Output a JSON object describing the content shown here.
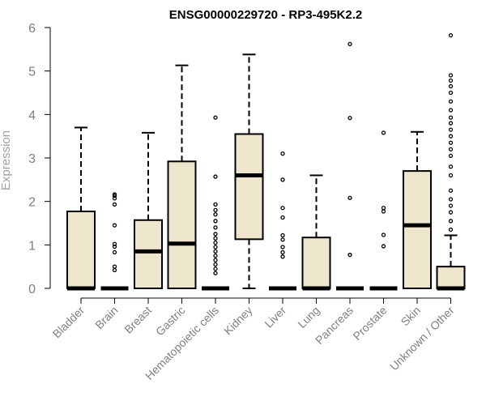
{
  "chart_data": {
    "type": "box",
    "title": "ENSG00000229720 - RP3-495K2.2",
    "xlabel": "",
    "ylabel": "Expression",
    "ylim": [
      0,
      6
    ],
    "yticks": [
      "0",
      "1",
      "2",
      "3",
      "4",
      "5",
      "6"
    ],
    "grid": false,
    "box_fill": "#ede6cc",
    "box_stroke": "#000000",
    "categories": [
      {
        "label": "Bladder",
        "whisker_low": 0,
        "q1": 0,
        "median": 0,
        "q3": 1.77,
        "whisker_high": 3.7,
        "outliers": []
      },
      {
        "label": "Brain",
        "whisker_low": 0,
        "q1": 0,
        "median": 0,
        "q3": 0,
        "whisker_high": 0,
        "outliers": [
          0.42,
          0.5,
          0.83,
          0.96,
          1.02,
          1.45,
          1.93,
          2.07,
          2.13,
          2.16
        ]
      },
      {
        "label": "Breast",
        "whisker_low": 0,
        "q1": 0,
        "median": 0.85,
        "q3": 1.57,
        "whisker_high": 3.58,
        "outliers": []
      },
      {
        "label": "Gastric",
        "whisker_low": 0,
        "q1": 0,
        "median": 1.03,
        "q3": 2.92,
        "whisker_high": 5.13,
        "outliers": []
      },
      {
        "label": "Hematopoietic cells",
        "whisker_low": 0,
        "q1": 0,
        "median": 0,
        "q3": 0,
        "whisker_high": 0,
        "outliers": [
          0.35,
          0.45,
          0.55,
          0.65,
          0.75,
          0.85,
          0.95,
          1.05,
          1.15,
          1.25,
          1.4,
          1.55,
          1.7,
          1.8,
          1.93,
          2.57,
          3.93
        ]
      },
      {
        "label": "Kidney",
        "whisker_low": 0,
        "q1": 1.13,
        "median": 2.6,
        "q3": 3.55,
        "whisker_high": 5.38,
        "outliers": []
      },
      {
        "label": "Liver",
        "whisker_low": 0,
        "q1": 0,
        "median": 0,
        "q3": 0,
        "whisker_high": 0,
        "outliers": [
          0.73,
          0.83,
          0.95,
          1.12,
          1.22,
          1.63,
          1.85,
          2.5,
          3.1
        ]
      },
      {
        "label": "Lung",
        "whisker_low": 0,
        "q1": 0,
        "median": 0,
        "q3": 1.17,
        "whisker_high": 2.6,
        "outliers": []
      },
      {
        "label": "Pancreas",
        "whisker_low": 0,
        "q1": 0,
        "median": 0,
        "q3": 0,
        "whisker_high": 0,
        "outliers": [
          0.77,
          2.08,
          3.92,
          5.62
        ]
      },
      {
        "label": "Prostate",
        "whisker_low": 0,
        "q1": 0,
        "median": 0,
        "q3": 0,
        "whisker_high": 0,
        "outliers": [
          0.97,
          1.23,
          1.77,
          1.85,
          3.58
        ]
      },
      {
        "label": "Skin",
        "whisker_low": 0,
        "q1": 0,
        "median": 1.45,
        "q3": 2.7,
        "whisker_high": 3.6,
        "outliers": []
      },
      {
        "label": "Unknown / Other",
        "whisker_low": 0,
        "q1": 0,
        "median": 0,
        "q3": 0.5,
        "whisker_high": 1.22,
        "outliers": [
          1.35,
          1.55,
          1.75,
          1.9,
          2.05,
          2.25,
          2.6,
          2.8,
          3.05,
          3.2,
          3.35,
          3.5,
          3.65,
          3.8,
          3.93,
          4.1,
          4.3,
          4.5,
          4.65,
          4.78,
          4.9,
          5.82
        ]
      }
    ]
  }
}
